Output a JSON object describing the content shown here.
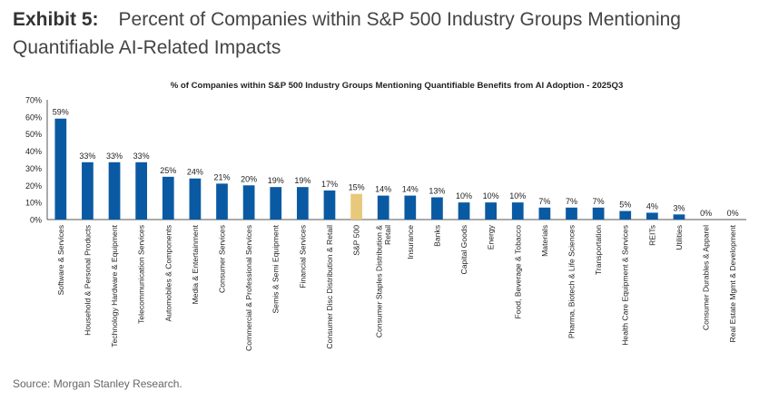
{
  "header": {
    "exhibit_label": "Exhibit 5:",
    "exhibit_title": "Percent of Companies within S&P 500 Industry Groups Mentioning Quantifiable AI-Related Impacts"
  },
  "footer": {
    "source": "Source: Morgan Stanley Research."
  },
  "colors": {
    "bar": "#0a5aa3",
    "highlight": "#e8c87a",
    "axis": "#555555"
  },
  "chart_data": {
    "type": "bar",
    "title": "% of Companies within S&P 500 Industry Groups Mentioning Quantifiable Benefits from AI Adoption - 2025Q3",
    "xlabel": "",
    "ylabel": "",
    "ylim": [
      0,
      70
    ],
    "yticks": [
      0,
      10,
      20,
      30,
      40,
      50,
      60,
      70
    ],
    "ytick_labels": [
      "0%",
      "10%",
      "20%",
      "30%",
      "40%",
      "50%",
      "60%",
      "70%"
    ],
    "grid": false,
    "legend": "none",
    "highlight_category": "S&P 500",
    "categories": [
      "Software & Services",
      "Household & Personal Products",
      "Technology Hardware & Equipment",
      "Telecommunication Services",
      "Automobiles & Components",
      "Media & Entertainment",
      "Consumer Services",
      "Commercial & Professional Services",
      "Semis & Semi Equipment",
      "Financial Services",
      "Consumer Disc Distribution & Retail",
      "S&P 500",
      "Consumer Staples Distribution & Retail",
      "Insurance",
      "Banks",
      "Capital Goods",
      "Energy",
      "Food, Beverage & Tobacco",
      "Materials",
      "Pharma, Biotech & Life Sciences",
      "Transportation",
      "Health Care Equipment & Services",
      "REITs",
      "Utilities",
      "Consumer Durables & Apparel",
      "Real Estate Mgmt & Development"
    ],
    "values": [
      59,
      33.5,
      33.5,
      33.5,
      25,
      24,
      21,
      20,
      19,
      19,
      17,
      15,
      14,
      14,
      13,
      10,
      10,
      10,
      7,
      7,
      7,
      5,
      4,
      3,
      0,
      0
    ],
    "data_labels": [
      "59%",
      "33%",
      "33%",
      "33%",
      "25%",
      "24%",
      "21%",
      "20%",
      "19%",
      "19%",
      "17%",
      "15%",
      "14%",
      "14%",
      "13%",
      "10%",
      "10%",
      "10%",
      "7%",
      "7%",
      "7%",
      "5%",
      "4%",
      "3%",
      "0%",
      "0%"
    ]
  }
}
